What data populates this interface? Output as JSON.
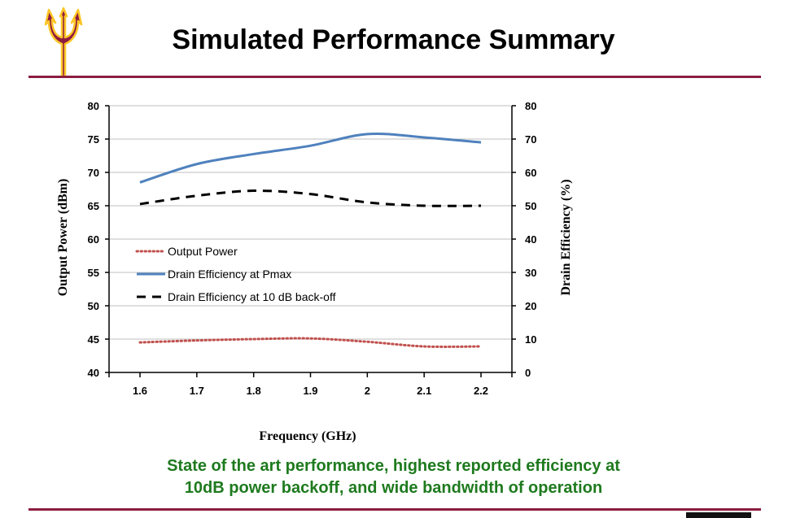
{
  "page": {
    "title": "Simulated Performance Summary",
    "caption_line1": "State of the art performance, highest reported efficiency at",
    "caption_line2": "10dB power backoff, and wide bandwidth of operation"
  },
  "colors": {
    "brand_maroon": "#8c1d40",
    "brand_gold": "#ffc627",
    "output_power": "#c0504d",
    "drain_eff_pmax": "#4f81bd",
    "drain_eff_backoff": "#000000",
    "caption_green": "#1e7a1e"
  },
  "chart_data": {
    "type": "line",
    "xlabel": "Frequency (GHz)",
    "ylabel": "Output Power (dBm)",
    "y2label": "Drain Efficiency (%)",
    "xlim": [
      1.6,
      2.2
    ],
    "ylim": [
      40,
      80
    ],
    "y2lim": [
      0,
      80
    ],
    "x_ticks": [
      "1.6",
      "1.7",
      "1.8",
      "1.9",
      "2",
      "2.1",
      "2.2"
    ],
    "y_ticks": [
      "40",
      "45",
      "50",
      "55",
      "60",
      "65",
      "70",
      "75",
      "80"
    ],
    "y2_ticks": [
      "0",
      "10",
      "20",
      "30",
      "40",
      "50",
      "60",
      "70",
      "80"
    ],
    "grid": true,
    "legend_position": "center-left",
    "series": [
      {
        "name": "Output Power",
        "axis": "left",
        "style": "dotted",
        "color": "#c0504d",
        "x": [
          1.6,
          1.7,
          1.8,
          1.9,
          2.0,
          2.1,
          2.2
        ],
        "y": [
          44.5,
          44.8,
          45.0,
          45.1,
          44.6,
          43.9,
          43.9
        ]
      },
      {
        "name": "Drain Efficiency at Pmax",
        "axis": "right",
        "style": "solid",
        "color": "#4f81bd",
        "x": [
          1.6,
          1.7,
          1.8,
          1.9,
          2.0,
          2.1,
          2.2
        ],
        "y": [
          57,
          62.5,
          65.5,
          68,
          71.5,
          70.5,
          69
        ]
      },
      {
        "name": "Drain Efficiency at 10 dB back-off",
        "axis": "right",
        "style": "dashed",
        "color": "#000000",
        "x": [
          1.6,
          1.7,
          1.8,
          1.9,
          2.0,
          2.1,
          2.2
        ],
        "y": [
          50.5,
          53,
          54.5,
          53.5,
          51,
          50,
          50
        ]
      }
    ]
  }
}
